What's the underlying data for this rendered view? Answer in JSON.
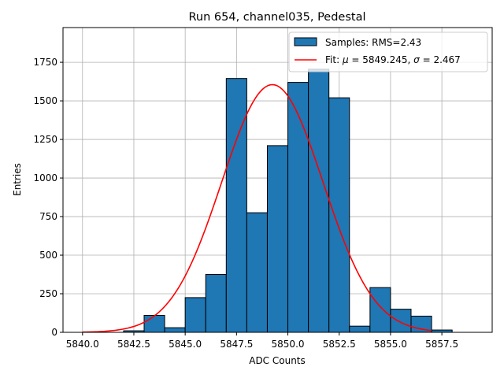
{
  "chart_data": {
    "type": "bar",
    "title": "Run 654, channel035, Pedestal",
    "xlabel": "ADC Counts",
    "ylabel": "Entries",
    "xlim": [
      5839.05,
      5859.95
    ],
    "ylim": [
      0,
      1975
    ],
    "xticks": [
      5840.0,
      5842.5,
      5845.0,
      5847.5,
      5850.0,
      5852.5,
      5855.0,
      5857.5
    ],
    "xtick_labels": [
      "5840.0",
      "5842.5",
      "5845.0",
      "5847.5",
      "5850.0",
      "5852.5",
      "5855.0",
      "5857.5"
    ],
    "yticks": [
      0,
      250,
      500,
      750,
      1000,
      1250,
      1500,
      1750
    ],
    "ytick_labels": [
      "0",
      "250",
      "500",
      "750",
      "1000",
      "1250",
      "1500",
      "1750"
    ],
    "grid": true,
    "legend_position": "top-right",
    "histogram": {
      "name": "Samples: RMS=2.43",
      "color": "#1f77b4",
      "edge_color": "#000000",
      "bin_edges": [
        5840,
        5841,
        5842,
        5843,
        5844,
        5845,
        5846,
        5847,
        5848,
        5849,
        5850,
        5851,
        5852,
        5853,
        5854,
        5855,
        5856,
        5857,
        5858,
        5859
      ],
      "counts": [
        0,
        0,
        10,
        110,
        30,
        225,
        375,
        1645,
        775,
        1210,
        1620,
        1705,
        1520,
        40,
        290,
        150,
        105,
        15,
        0
      ]
    },
    "fit": {
      "name_prefix": "Fit: ",
      "mu_symbol": "μ",
      "mu_text": " = 5849.245, ",
      "sigma_symbol": "σ",
      "sigma_text": " = 2.467",
      "color": "#ff0000",
      "mu": 5849.245,
      "sigma": 2.467,
      "amplitude": 1605,
      "x_range": [
        5840,
        5857
      ]
    }
  }
}
